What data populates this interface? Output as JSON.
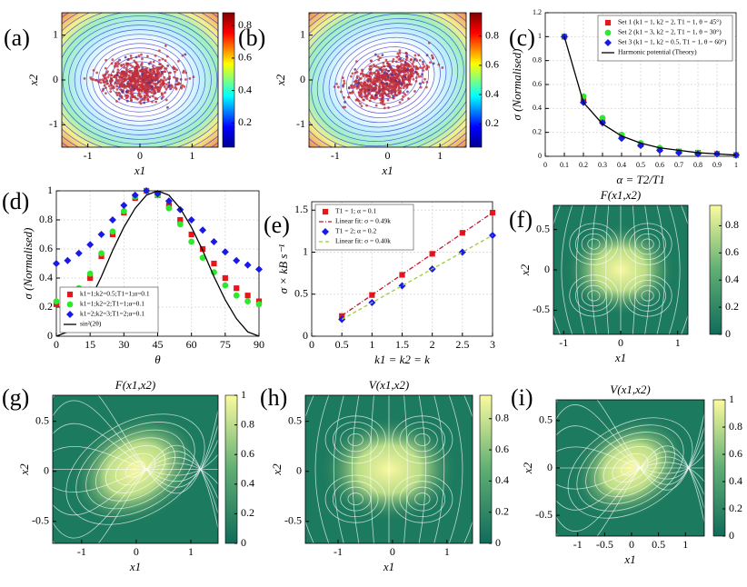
{
  "chart_data": [
    {
      "label": "(a)",
      "type": "contour",
      "x_label": "x1",
      "y_label": "x2",
      "xlim": [
        -1.5,
        1.5
      ],
      "ylim": [
        -1.5,
        1.5
      ],
      "xticks": [
        -1,
        0,
        1
      ],
      "yticks": [
        -1,
        0,
        1
      ],
      "clim": [
        0.05,
        0.88
      ],
      "cticks": [
        0.2,
        0.4,
        0.6,
        0.8
      ],
      "tilt": 0
    },
    {
      "label": "(b)",
      "type": "contour",
      "x_label": "x1",
      "y_label": "x2",
      "xlim": [
        -1.5,
        1.5
      ],
      "ylim": [
        -1.5,
        1.5
      ],
      "xticks": [
        -1,
        0,
        1
      ],
      "yticks": [
        -1,
        0,
        1
      ],
      "clim": [
        0.04,
        0.96
      ],
      "cticks": [
        0.2,
        0.4,
        0.6,
        0.8
      ],
      "tilt": -18
    },
    {
      "label": "(c)",
      "type": "errorbar",
      "x_label": "α = T2/T1",
      "y_label": "σ (Normalised)",
      "xlim": [
        0,
        1
      ],
      "ylim": [
        0,
        1.2
      ],
      "xticks": [
        0,
        0.1,
        0.2,
        0.3,
        0.4,
        0.5,
        0.6,
        0.7,
        0.8,
        0.9,
        1
      ],
      "yticks": [
        0,
        0.2,
        0.4,
        0.6,
        0.8,
        1,
        1.2
      ],
      "grid": true,
      "legend": "upper right",
      "x": [
        0.1,
        0.2,
        0.3,
        0.4,
        0.5,
        0.6,
        0.7,
        0.8,
        0.9,
        1
      ],
      "series": [
        {
          "name": "Set 1 (k1 = 1, k2 = 2, T1 = 1, θ = 45°)",
          "color": "#e8161b",
          "marker": "square",
          "values": [
            1,
            0.47,
            0.3,
            0.17,
            0.1,
            0.06,
            0.04,
            0.03,
            0.02,
            0.01
          ]
        },
        {
          "name": "Set 2 (k1 = 3, k2 = 2, T1 = 1, θ = 30°)",
          "color": "#2ee82e",
          "marker": "circle",
          "values": [
            1,
            0.5,
            0.32,
            0.18,
            0.11,
            0.07,
            0.04,
            0.03,
            0.02,
            0.01
          ]
        },
        {
          "name": "Set 3 (k1 = 1, k2 = 0.5, T1 = 1, θ = 60°)",
          "color": "#1a1ae6",
          "marker": "diamond",
          "values": [
            1,
            0.45,
            0.28,
            0.15,
            0.09,
            0.05,
            0.03,
            0.02,
            0.02,
            0.01
          ]
        },
        {
          "name": "Harmonic potential (Theory)",
          "color": "#000000",
          "line": "solid",
          "values": [
            1,
            0.45,
            0.27,
            0.17,
            0.11,
            0.07,
            0.05,
            0.03,
            0.02,
            0.01
          ]
        }
      ]
    },
    {
      "label": "(d)",
      "type": "errorbar",
      "x_label": "θ",
      "y_label": "σ (Normalised)",
      "xlim": [
        0,
        90
      ],
      "ylim": [
        0,
        1
      ],
      "xticks": [
        0,
        15,
        30,
        45,
        60,
        75,
        90
      ],
      "yticks": [
        0,
        0.2,
        0.4,
        0.6,
        0.8,
        1
      ],
      "grid": true,
      "legend": "lower left",
      "x": [
        0,
        5,
        10,
        15,
        20,
        25,
        30,
        35,
        40,
        45,
        50,
        55,
        60,
        65,
        70,
        75,
        80,
        85,
        90
      ],
      "series": [
        {
          "name": "k1=1;k2=0.5;T1=1;α=0.1",
          "color": "#e8161b",
          "marker": "square",
          "values": [
            0.22,
            0.25,
            0.3,
            0.4,
            0.55,
            0.7,
            0.85,
            0.95,
            1,
            0.97,
            0.9,
            0.8,
            0.7,
            0.6,
            0.5,
            0.4,
            0.33,
            0.28,
            0.24
          ]
        },
        {
          "name": "k1=1;k2=2;T1=1;α=0.1",
          "color": "#2ee82e",
          "marker": "circle",
          "values": [
            0.24,
            0.27,
            0.33,
            0.43,
            0.57,
            0.72,
            0.86,
            0.96,
            1,
            0.97,
            0.88,
            0.77,
            0.65,
            0.54,
            0.44,
            0.35,
            0.28,
            0.24,
            0.22
          ]
        },
        {
          "name": "k1=2;k2=3;T1=2;α=0.1",
          "color": "#1a1ae6",
          "marker": "diamond",
          "values": [
            0.5,
            0.52,
            0.57,
            0.63,
            0.7,
            0.8,
            0.9,
            0.97,
            1,
            0.98,
            0.93,
            0.87,
            0.8,
            0.73,
            0.65,
            0.58,
            0.52,
            0.49,
            0.46
          ]
        },
        {
          "name": "sin²(2θ)",
          "color": "#000000",
          "line": "solid",
          "values": [
            0,
            0.03,
            0.12,
            0.25,
            0.41,
            0.59,
            0.75,
            0.88,
            0.97,
            1,
            0.97,
            0.88,
            0.75,
            0.59,
            0.41,
            0.25,
            0.12,
            0.03,
            0
          ]
        }
      ]
    },
    {
      "label": "(e)",
      "type": "errorbar",
      "x_label": "k1 = k2 = k",
      "y_label": "σ × kB s⁻¹",
      "xlim": [
        0,
        3
      ],
      "ylim": [
        0,
        1.6
      ],
      "xticks": [
        0,
        0.5,
        1,
        1.5,
        2,
        2.5,
        3
      ],
      "yticks": [
        0,
        0.5,
        1,
        1.5
      ],
      "grid": true,
      "legend": "upper left",
      "x": [
        0.5,
        1,
        1.5,
        2,
        2.5,
        3
      ],
      "series": [
        {
          "name": "T1 = 1; α = 0.1",
          "color": "#e8161b",
          "marker": "square",
          "values": [
            0.24,
            0.49,
            0.73,
            0.98,
            1.23,
            1.47
          ]
        },
        {
          "name": "Linear fit: σ = 0.49k",
          "color": "#c0142a",
          "line": "dashdot",
          "x": [
            0.5,
            3
          ],
          "values": [
            0.245,
            1.47
          ]
        },
        {
          "name": "T1 = 2; α = 0.2",
          "color": "#1a1ae6",
          "marker": "diamond",
          "values": [
            0.2,
            0.4,
            0.6,
            0.8,
            1,
            1.2
          ]
        },
        {
          "name": "Linear fit: σ = 0.40k",
          "color": "#9acd32",
          "line": "dashed",
          "x": [
            0.5,
            3
          ],
          "values": [
            0.2,
            1.2
          ]
        }
      ]
    },
    {
      "label": "(f)",
      "type": "stream",
      "title": "F(x1,x2)",
      "x_label": "x1",
      "y_label": "x2",
      "xlim": [
        -1.18,
        1.18
      ],
      "ylim": [
        -0.8,
        0.8
      ],
      "xticks": [
        -1,
        0,
        1
      ],
      "yticks": [
        -0.5,
        0,
        0.5
      ],
      "clim": [
        0,
        0.95
      ],
      "cticks": [
        0,
        0.2,
        0.4,
        0.6,
        0.8
      ],
      "pattern": "quad"
    },
    {
      "label": "(g)",
      "type": "stream",
      "title": "F(x1,x2)",
      "x_label": "x1",
      "y_label": "x2",
      "xlim": [
        -1.53,
        1.5
      ],
      "ylim": [
        -0.72,
        0.76
      ],
      "xticks": [
        -1,
        0,
        1
      ],
      "yticks": [
        -0.5,
        0,
        0.5
      ],
      "clim": [
        0,
        1
      ],
      "cticks": [
        0,
        0.2,
        0.4,
        0.6,
        0.8,
        1
      ],
      "pattern": "tilt"
    },
    {
      "label": "(h)",
      "type": "stream",
      "title": "V(x1,x2)",
      "x_label": "x1",
      "y_label": "x2",
      "xlim": [
        -1.6,
        1.47
      ],
      "ylim": [
        -0.72,
        0.76
      ],
      "xticks": [
        -1,
        0,
        1
      ],
      "yticks": [
        -0.5,
        0,
        0.5
      ],
      "clim": [
        0,
        0.95
      ],
      "cticks": [
        0,
        0.2,
        0.4,
        0.6,
        0.8
      ],
      "pattern": "quad"
    },
    {
      "label": "(i)",
      "type": "stream",
      "title": "V(x1,x2)",
      "x_label": "x1",
      "y_label": "x2",
      "xlim": [
        -1.4,
        1.35
      ],
      "ylim": [
        -0.72,
        0.72
      ],
      "xticks": [
        -1,
        -0.5,
        0,
        0.5,
        1
      ],
      "yticks": [
        -0.5,
        0,
        0.5
      ],
      "clim": [
        0,
        1
      ],
      "cticks": [
        0,
        0.2,
        0.4,
        0.6,
        0.8,
        1
      ],
      "pattern": "tilt"
    }
  ]
}
